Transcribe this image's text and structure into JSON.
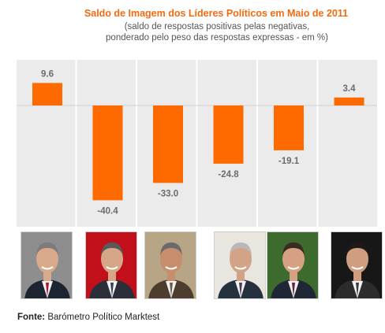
{
  "title": "Saldo de Imagem dos Líderes Políticos em Maio de 2011",
  "subtitle": "(saldo de respostas positivas pelas negativas,\nponderado pelo peso das respostas expressas - em %)",
  "source_label": "Fonte:",
  "source_text": "Barómetro Político Marktest",
  "colors": {
    "bar": "#ff6a00",
    "title": "#f26a10",
    "panel": "#ebebeb"
  },
  "chart_data": {
    "type": "bar",
    "title": "Saldo de Imagem dos Líderes Políticos em Maio de 2011",
    "subtitle": "(saldo de respostas positivas pelas negativas, ponderado pelo peso das respostas expressas - em %)",
    "values": [
      9.6,
      -40.4,
      -33.0,
      -24.8,
      -19.1,
      3.4
    ],
    "value_labels": [
      "9.6",
      "-40.4",
      "-33.0",
      "-24.8",
      "-19.1",
      "3.4"
    ],
    "ylim": [
      -48,
      20
    ],
    "grid": false,
    "legend": "none"
  },
  "photos": [
    "portrait-1",
    "portrait-2",
    "portrait-3",
    "portrait-4",
    "portrait-5",
    "portrait-6"
  ]
}
